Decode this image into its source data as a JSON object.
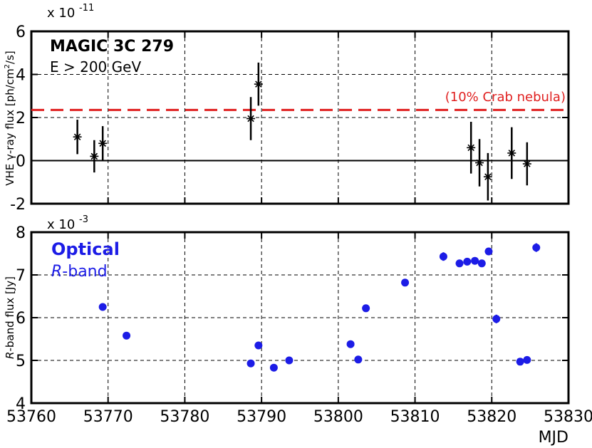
{
  "chart_data": [
    {
      "type": "scatter",
      "panel": "top",
      "ylabel_pre": "VHE ",
      "ylabel_gamma": "γ",
      "ylabel_post": "-ray flux [ph/cm",
      "ylabel_sup": "2",
      "ylabel_end": "/s]",
      "y_exponent_base": "x 10",
      "y_exponent_power": "-11",
      "xlim": [
        53760,
        53830
      ],
      "ylim": [
        -2,
        6
      ],
      "yticks": [
        "-2",
        "0",
        "2",
        "4",
        "6"
      ],
      "ytick_values": [
        -2,
        0,
        2,
        4,
        6
      ],
      "xtick_values": [
        53760,
        53770,
        53780,
        53790,
        53800,
        53810,
        53820,
        53830
      ],
      "grid": true,
      "annotation_line1": "MAGIC 3C 279",
      "annotation_line2": "E > 200 GeV",
      "reference_line": {
        "value": 2.35,
        "label": "(10% Crab nebula)",
        "color": "#e02020"
      },
      "zero_line": 0,
      "series": [
        {
          "marker": "star",
          "color": "#000000",
          "points": [
            {
              "x": 53766.0,
              "y": 1.1,
              "err": 0.8
            },
            {
              "x": 53768.2,
              "y": 0.2,
              "err": 0.75
            },
            {
              "x": 53769.3,
              "y": 0.8,
              "err": 0.8
            },
            {
              "x": 53788.6,
              "y": 1.95,
              "err": 1.0
            },
            {
              "x": 53789.6,
              "y": 3.55,
              "err": 1.0
            },
            {
              "x": 53817.3,
              "y": 0.6,
              "err": 1.2
            },
            {
              "x": 53818.4,
              "y": -0.1,
              "err": 1.1
            },
            {
              "x": 53819.5,
              "y": -0.75,
              "err": 1.1
            },
            {
              "x": 53822.6,
              "y": 0.35,
              "err": 1.2
            },
            {
              "x": 53824.6,
              "y": -0.15,
              "err": 1.0
            }
          ]
        }
      ]
    },
    {
      "type": "scatter",
      "panel": "bottom",
      "ylabel_italic": "R",
      "ylabel_rest": "-band flux [Jy]",
      "y_exponent_base": "x 10",
      "y_exponent_power": "-3",
      "xlabel": "MJD",
      "xlim": [
        53760,
        53830
      ],
      "ylim": [
        4,
        8
      ],
      "yticks": [
        "4",
        "5",
        "6",
        "7",
        "8"
      ],
      "ytick_values": [
        4,
        5,
        6,
        7,
        8
      ],
      "xticks": [
        "53760",
        "53770",
        "53780",
        "53790",
        "53800",
        "53810",
        "53820",
        "53830"
      ],
      "xtick_values": [
        53760,
        53770,
        53780,
        53790,
        53800,
        53810,
        53820,
        53830
      ],
      "grid": true,
      "annotation_line1": "Optical",
      "annotation_line2_italic": "R",
      "annotation_line2_rest": "-band",
      "series": [
        {
          "marker": "circle",
          "color": "#1c1ce6",
          "points": [
            {
              "x": 53769.3,
              "y": 6.25,
              "err": 0.06
            },
            {
              "x": 53772.4,
              "y": 5.58,
              "err": 0.05
            },
            {
              "x": 53788.6,
              "y": 4.93,
              "err": 0.05
            },
            {
              "x": 53789.6,
              "y": 5.35,
              "err": 0.05
            },
            {
              "x": 53791.6,
              "y": 4.83,
              "err": 0.05
            },
            {
              "x": 53793.6,
              "y": 5.0,
              "err": 0.05
            },
            {
              "x": 53801.6,
              "y": 5.38,
              "err": 0.05
            },
            {
              "x": 53802.6,
              "y": 5.02,
              "err": 0.05
            },
            {
              "x": 53803.6,
              "y": 6.22,
              "err": 0.08
            },
            {
              "x": 53808.7,
              "y": 6.82,
              "err": 0.08
            },
            {
              "x": 53813.7,
              "y": 7.43,
              "err": 0.1
            },
            {
              "x": 53815.8,
              "y": 7.27,
              "err": 0.08
            },
            {
              "x": 53816.8,
              "y": 7.31,
              "err": 0.08
            },
            {
              "x": 53817.8,
              "y": 7.33,
              "err": 0.08
            },
            {
              "x": 53818.7,
              "y": 7.27,
              "err": 0.08
            },
            {
              "x": 53819.6,
              "y": 7.55,
              "err": 0.08
            },
            {
              "x": 53820.6,
              "y": 5.97,
              "err": 0.1
            },
            {
              "x": 53823.7,
              "y": 4.97,
              "err": 0.05
            },
            {
              "x": 53824.6,
              "y": 5.01,
              "err": 0.05
            },
            {
              "x": 53825.8,
              "y": 7.64,
              "err": 0.1
            }
          ]
        }
      ]
    }
  ]
}
